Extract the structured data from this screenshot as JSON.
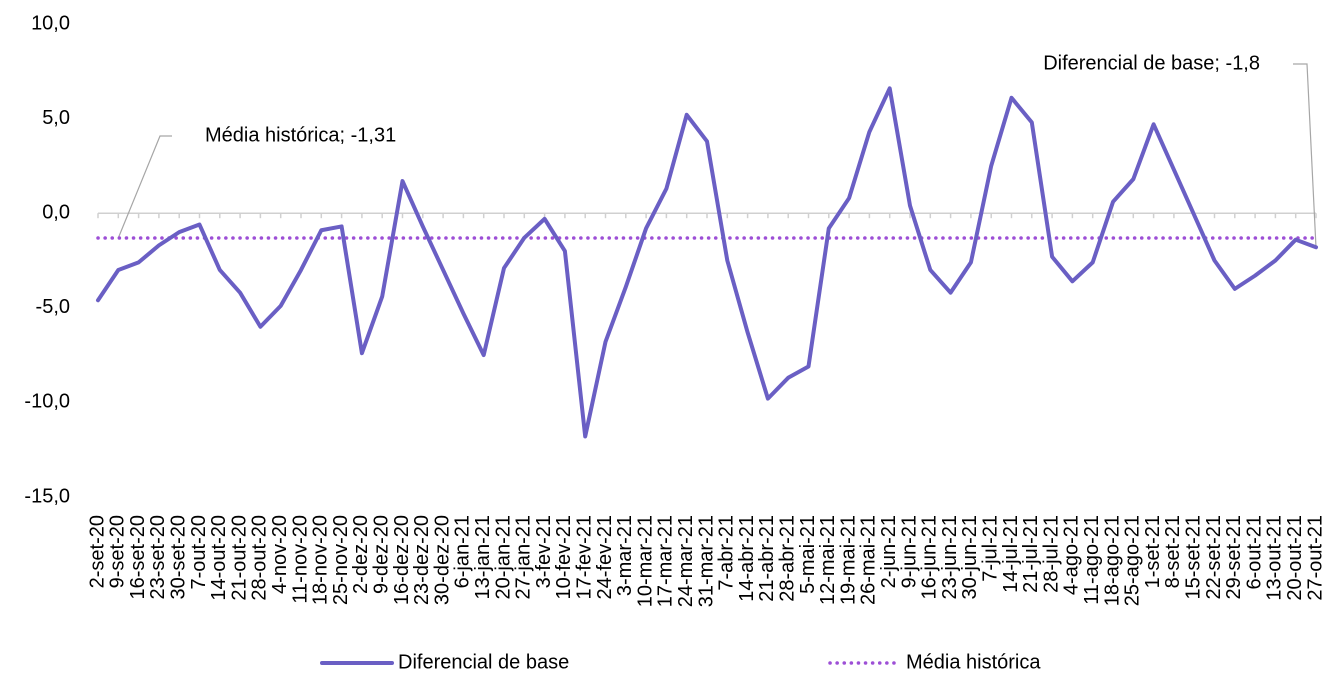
{
  "chart_data": {
    "type": "line",
    "categories": [
      "2-set-20",
      "9-set-20",
      "16-set-20",
      "23-set-20",
      "30-set-20",
      "7-out-20",
      "14-out-20",
      "21-out-20",
      "28-out-20",
      "4-nov-20",
      "11-nov-20",
      "18-nov-20",
      "25-nov-20",
      "2-dez-20",
      "9-dez-20",
      "16-dez-20",
      "23-dez-20",
      "30-dez-20",
      "6-jan-21",
      "13-jan-21",
      "20-jan-21",
      "27-jan-21",
      "3-fev-21",
      "10-fev-21",
      "17-fev-21",
      "24-fev-21",
      "3-mar-21",
      "10-mar-21",
      "17-mar-21",
      "24-mar-21",
      "31-mar-21",
      "7-abr-21",
      "14-abr-21",
      "21-abr-21",
      "28-abr-21",
      "5-mai-21",
      "12-mai-21",
      "19-mai-21",
      "26-mai-21",
      "2-jun-21",
      "9-jun-21",
      "16-jun-21",
      "23-jun-21",
      "30-jun-21",
      "7-jul-21",
      "14-jul-21",
      "21-jul-21",
      "28-jul-21",
      "4-ago-21",
      "11-ago-21",
      "18-ago-21",
      "25-ago-21",
      "1-set-21",
      "8-set-21",
      "15-set-21",
      "22-set-21",
      "29-set-21",
      "6-out-21",
      "13-out-21",
      "20-out-21",
      "27-out-21"
    ],
    "series": [
      {
        "name": "Diferencial de base",
        "color": "#6a5fc4",
        "style": "solid",
        "values": [
          -4.6,
          -3.0,
          -2.6,
          -1.7,
          -1.0,
          -0.6,
          -3.0,
          -4.2,
          -6.0,
          -4.9,
          -3.0,
          -0.9,
          -0.7,
          -7.4,
          -4.4,
          1.7,
          -0.7,
          -3.0,
          -5.3,
          -7.5,
          -2.9,
          -1.3,
          -0.3,
          -2.0,
          -11.8,
          -6.8,
          -3.9,
          -0.8,
          1.3,
          5.2,
          3.8,
          -2.5,
          -6.3,
          -9.8,
          -8.7,
          -8.1,
          -0.8,
          0.8,
          4.3,
          6.6,
          0.4,
          -3.0,
          -4.2,
          -2.6,
          2.5,
          6.1,
          4.8,
          -2.3,
          -3.6,
          -2.6,
          0.6,
          1.8,
          4.7,
          2.3,
          -0.1,
          -2.5,
          -4.0,
          -3.3,
          -2.5,
          -1.4,
          -1.8
        ]
      },
      {
        "name": "Média histórica",
        "color": "#9d4fd6",
        "style": "dotted",
        "values": [
          -1.31,
          -1.31,
          -1.31,
          -1.31,
          -1.31,
          -1.31,
          -1.31,
          -1.31,
          -1.31,
          -1.31,
          -1.31,
          -1.31,
          -1.31,
          -1.31,
          -1.31,
          -1.31,
          -1.31,
          -1.31,
          -1.31,
          -1.31,
          -1.31,
          -1.31,
          -1.31,
          -1.31,
          -1.31,
          -1.31,
          -1.31,
          -1.31,
          -1.31,
          -1.31,
          -1.31,
          -1.31,
          -1.31,
          -1.31,
          -1.31,
          -1.31,
          -1.31,
          -1.31,
          -1.31,
          -1.31,
          -1.31,
          -1.31,
          -1.31,
          -1.31,
          -1.31,
          -1.31,
          -1.31,
          -1.31,
          -1.31,
          -1.31,
          -1.31,
          -1.31,
          -1.31,
          -1.31,
          -1.31,
          -1.31,
          -1.31,
          -1.31,
          -1.31,
          -1.31,
          -1.31
        ]
      }
    ],
    "annotations": [
      "Média histórica; -1,31",
      "Diferencial de base; -1,8"
    ],
    "ylim": [
      -15,
      10
    ],
    "yticks": [
      {
        "value": -15,
        "label": "-15,0"
      },
      {
        "value": -10,
        "label": "-10,0"
      },
      {
        "value": -5,
        "label": "-5,0"
      },
      {
        "value": 0,
        "label": "0,0"
      },
      {
        "value": 5,
        "label": "5,0"
      },
      {
        "value": 10,
        "label": "10,0"
      }
    ],
    "grid": false,
    "legend": "bottom"
  }
}
